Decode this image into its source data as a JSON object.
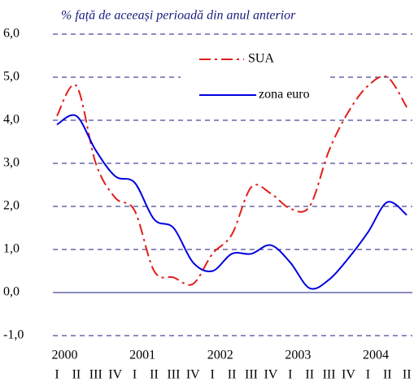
{
  "chart_data": {
    "type": "line",
    "subtitle": "% față de aceeași perioadă din anul anterior",
    "categories": [
      "I",
      "II",
      "III",
      "IV",
      "I",
      "II",
      "III",
      "IV",
      "I",
      "II",
      "III",
      "IV",
      "I",
      "II",
      "III",
      "IV",
      "I",
      "II",
      "II"
    ],
    "years": [
      "2000",
      "2001",
      "2002",
      "2003",
      "2004"
    ],
    "series": [
      {
        "name": "SUA",
        "color": "#e0201b",
        "dash": "dashdot",
        "values": [
          4.1,
          4.8,
          3.0,
          2.2,
          1.9,
          0.5,
          0.35,
          0.2,
          0.9,
          1.35,
          2.45,
          2.3,
          1.95,
          2.0,
          3.3,
          4.2,
          4.8,
          5.0,
          4.3
        ]
      },
      {
        "name": "zona euro",
        "color": "#0000e0",
        "dash": "solid",
        "values": [
          3.9,
          4.1,
          3.3,
          2.7,
          2.55,
          1.7,
          1.5,
          0.7,
          0.5,
          0.9,
          0.9,
          1.1,
          0.7,
          0.1,
          0.3,
          0.8,
          1.4,
          2.1,
          1.8
        ]
      }
    ],
    "ylim": [
      -1,
      6
    ],
    "yticks": [
      {
        "value": -1,
        "label": "-1,0"
      },
      {
        "value": 0,
        "label": "0,0"
      },
      {
        "value": 1,
        "label": "1,0"
      },
      {
        "value": 2,
        "label": "2,0"
      },
      {
        "value": 3,
        "label": "3,0"
      },
      {
        "value": 4,
        "label": "4,0"
      },
      {
        "value": 5,
        "label": "5,0"
      },
      {
        "value": 6,
        "label": "6,0"
      }
    ],
    "grid": true
  }
}
